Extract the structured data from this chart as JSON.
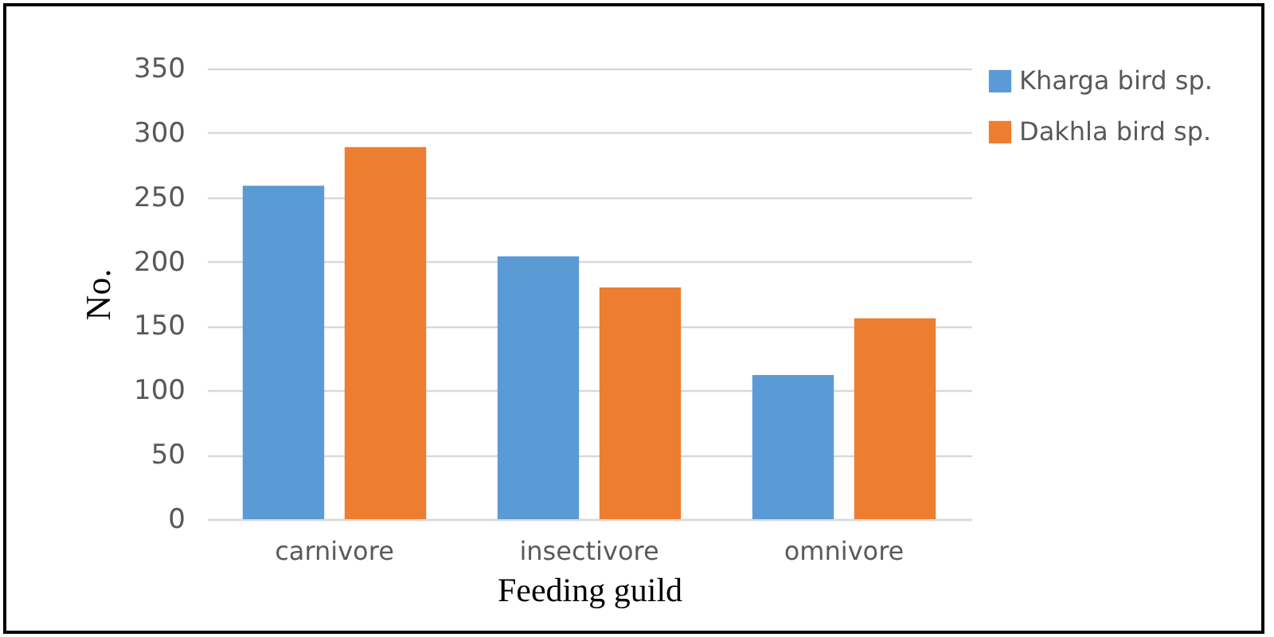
{
  "chart_data": {
    "type": "bar",
    "xlabel": "Feeding guild",
    "ylabel": "No.",
    "categories": [
      "carnivore",
      "insectivore",
      "omnivore"
    ],
    "series": [
      {
        "name": "Kharga bird sp.",
        "color": "#5b9bd5",
        "values": [
          259,
          204,
          112
        ]
      },
      {
        "name": "Dakhla bird sp.",
        "color": "#ed7d31",
        "values": [
          289,
          180,
          156
        ]
      }
    ],
    "ylim": [
      0,
      350
    ],
    "yticks": [
      0,
      50,
      100,
      150,
      200,
      250,
      300,
      350
    ],
    "grid": "y",
    "legend": "right"
  }
}
